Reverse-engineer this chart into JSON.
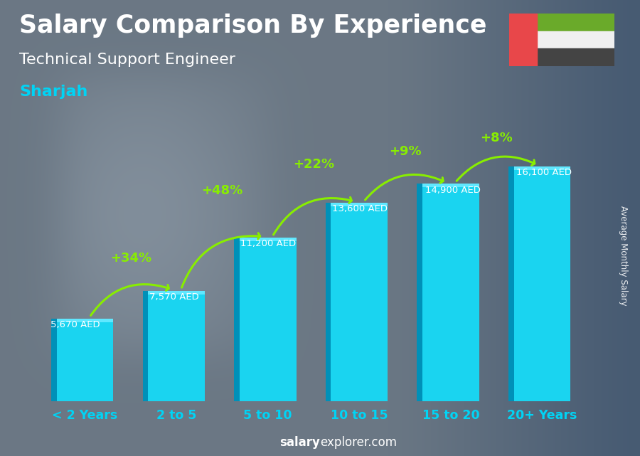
{
  "title_line1": "Salary Comparison By Experience",
  "title_line2": "Technical Support Engineer",
  "city": "Sharjah",
  "categories": [
    "< 2 Years",
    "2 to 5",
    "5 to 10",
    "10 to 15",
    "15 to 20",
    "20+ Years"
  ],
  "values": [
    5670,
    7570,
    11200,
    13600,
    14900,
    16100
  ],
  "bar_face_color": "#1ad4f0",
  "bar_side_color": "#0090b8",
  "bar_top_color": "#60e8ff",
  "pct_changes": [
    null,
    "+34%",
    "+48%",
    "+22%",
    "+9%",
    "+8%"
  ],
  "pct_color": "#88ee00",
  "salary_labels": [
    "5,670 AED",
    "7,570 AED",
    "11,200 AED",
    "13,600 AED",
    "14,900 AED",
    "16,100 AED"
  ],
  "ylabel_text": "Average Monthly Salary",
  "footer_bold": "salary",
  "footer_normal": "explorer.com",
  "bg_color": "#6a7a8a",
  "title_color": "#ffffff",
  "subtitle_color": "#ffffff",
  "city_color": "#00d4f5",
  "tick_label_color": "#00d4f5",
  "salary_label_color": "#ffffff",
  "ylim": [
    0,
    20000
  ],
  "figsize": [
    9.0,
    6.41
  ],
  "dpi": 100,
  "flag_red": "#e8474a",
  "flag_green": "#6aaa2a",
  "flag_white": "#f0f0f0",
  "flag_black": "#444444"
}
